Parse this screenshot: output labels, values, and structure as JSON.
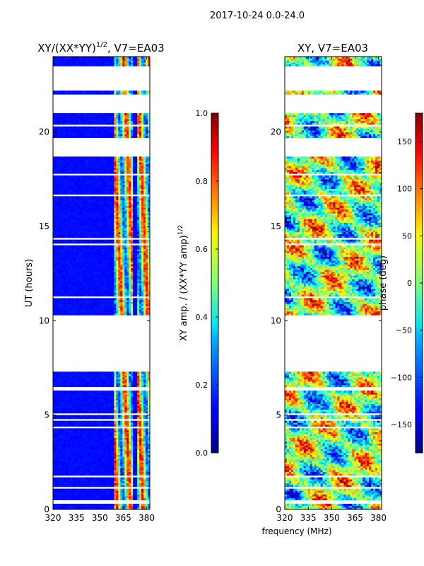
{
  "figure": {
    "suptitle": "2017-10-24 0.0-24.0",
    "shared_xlabel": "frequency (MHz)"
  },
  "chart_data": [
    {
      "type": "heatmap",
      "title": "XY/(XX*YY)^1/2, V7=EA03",
      "title_main": "XY/(XX*YY)",
      "title_exp": "1/2",
      "title_rest": ", V7=EA03",
      "xlabel": "frequency (MHz)",
      "ylabel": "UT (hours)",
      "xlim": [
        320,
        382
      ],
      "ylim": [
        0,
        24
      ],
      "xticks": [
        320,
        335,
        350,
        365,
        380
      ],
      "yticks": [
        0,
        5,
        10,
        15,
        20
      ],
      "colorbar": {
        "label_main": "XY amp. / (XX*YY amp)",
        "label_exp": "1/2",
        "range": [
          0.0,
          1.0
        ],
        "ticks": [
          0.0,
          0.2,
          0.4,
          0.6,
          0.8,
          1.0
        ],
        "tick_labels": [
          "0.0",
          "0.2",
          "0.4",
          "0.6",
          "0.8",
          "1.0"
        ],
        "colormap": "jet"
      },
      "data_gaps_ut_hours": [
        [
          0.3,
          0.5
        ],
        [
          7.3,
          10.3
        ],
        [
          18.7,
          19.7
        ],
        [
          21.0,
          22.0
        ],
        [
          22.2,
          23.5
        ]
      ],
      "active_band_mhz": [
        359,
        380
      ]
    },
    {
      "type": "heatmap",
      "title": "XY, V7=EA03",
      "xlabel": "frequency (MHz)",
      "ylabel": "",
      "xlim": [
        320,
        382
      ],
      "ylim": [
        0,
        24
      ],
      "xticks": [
        320,
        335,
        350,
        365,
        380
      ],
      "yticks": [
        0,
        5,
        10,
        15,
        20
      ],
      "colorbar": {
        "label": "phase (deg)",
        "range": [
          -180,
          180
        ],
        "ticks": [
          -150,
          -100,
          -50,
          0,
          50,
          100,
          150
        ],
        "tick_labels": [
          "−150",
          "−100",
          "−50",
          "0",
          "50",
          "100",
          "150"
        ],
        "colormap": "jet"
      },
      "data_gaps_ut_hours": [
        [
          0.3,
          0.5
        ],
        [
          7.3,
          10.3
        ],
        [
          18.7,
          19.7
        ],
        [
          21.0,
          22.0
        ],
        [
          22.2,
          23.5
        ]
      ]
    }
  ]
}
